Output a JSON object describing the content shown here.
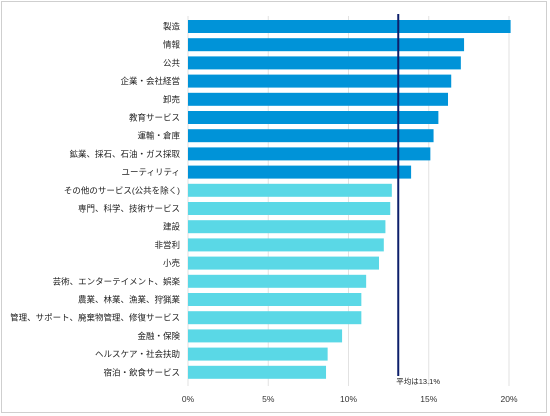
{
  "chart_data": {
    "type": "bar",
    "orientation": "horizontal",
    "categories": [
      "製造",
      "情報",
      "公共",
      "企業・会社経営",
      "卸売",
      "教育サービス",
      "運輸・倉庫",
      "鉱業、採石、石油・ガス採取",
      "ユーティリティ",
      "その他のサービス(公共を除く)",
      "専門、科学、技術サービス",
      "建設",
      "非営利",
      "小売",
      "芸術、エンターテイメント、娯楽",
      "農業、林業、漁業、狩猟業",
      "管理、サポート、廃棄物管理、修復サービス",
      "金融・保険",
      "ヘルスケア・社会扶助",
      "宿泊・飲食サービス"
    ],
    "values": [
      20.1,
      17.2,
      17.0,
      16.4,
      16.2,
      15.6,
      15.3,
      15.1,
      13.9,
      12.7,
      12.6,
      12.3,
      12.2,
      11.9,
      11.1,
      10.8,
      10.8,
      9.6,
      8.7,
      8.6
    ],
    "bar_colors": [
      "#0093d8",
      "#0093d8",
      "#0093d8",
      "#0093d8",
      "#0093d8",
      "#0093d8",
      "#0093d8",
      "#0093d8",
      "#0093d8",
      "#5ad8e6",
      "#5ad8e6",
      "#5ad8e6",
      "#5ad8e6",
      "#5ad8e6",
      "#5ad8e6",
      "#5ad8e6",
      "#5ad8e6",
      "#5ad8e6",
      "#5ad8e6",
      "#5ad8e6"
    ],
    "xlim": [
      0,
      20
    ],
    "x_ticks": [
      0,
      5,
      10,
      15,
      20
    ],
    "x_tick_labels": [
      "0%",
      "5%",
      "10%",
      "15%",
      "20%"
    ],
    "average": 13.1,
    "average_label": "平均は13.1%",
    "average_color": "#0d1f6b",
    "grid": true,
    "gridline_color": "#e2e2e2",
    "title": "",
    "xlabel": "",
    "ylabel": ""
  }
}
